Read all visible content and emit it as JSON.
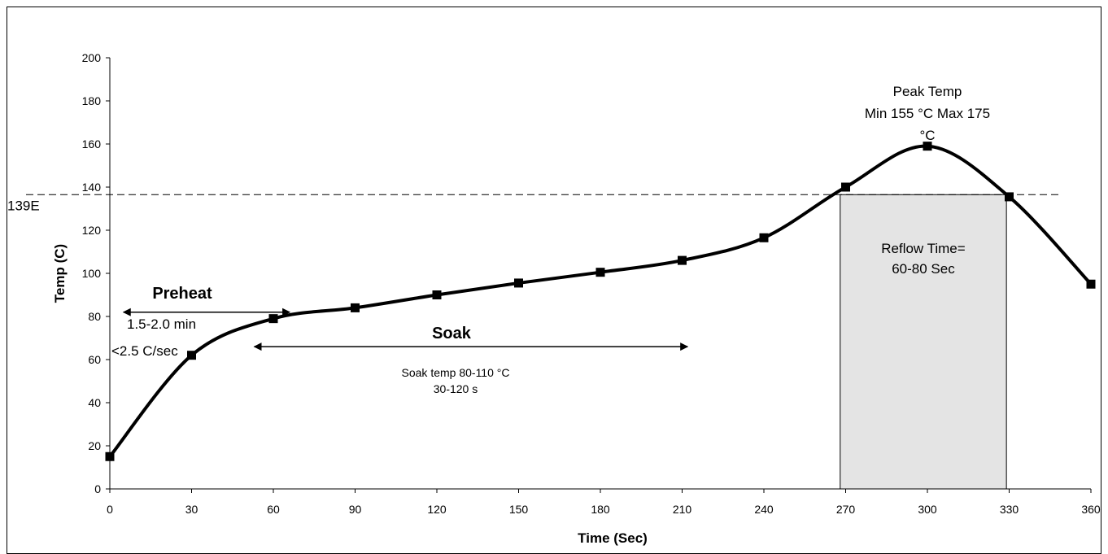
{
  "chart_data": {
    "type": "line",
    "title": "",
    "xlabel": "Time (Sec)",
    "ylabel": "Temp (C)",
    "xlim": [
      0,
      360
    ],
    "ylim": [
      0,
      200
    ],
    "x_ticks": [
      0,
      30,
      60,
      90,
      120,
      150,
      180,
      210,
      240,
      270,
      300,
      330,
      360
    ],
    "y_ticks": [
      0,
      20,
      40,
      60,
      80,
      100,
      120,
      140,
      160,
      180,
      200
    ],
    "grid": false,
    "series": [
      {
        "x": [
          0,
          30,
          60,
          90,
          120,
          150,
          180,
          210,
          240,
          270,
          300,
          330,
          360
        ],
        "y": [
          15,
          62,
          79,
          84,
          90,
          95.5,
          100.5,
          106,
          116.5,
          140,
          159,
          135.5,
          95
        ]
      }
    ],
    "reference_line": {
      "label": "139E",
      "y": 136.5
    },
    "reflow_region": {
      "x_start": 268,
      "x_end": 329,
      "y_top": 136.5,
      "lines": [
        "Reflow Time=",
        "60-80 Sec"
      ],
      "fill": "#e4e4e4"
    },
    "annotations": {
      "peak": [
        "Peak Temp",
        "Min 155 °C Max 175",
        "°C"
      ],
      "preheat": {
        "title": "Preheat",
        "lines": [
          "1.5-2.0 min",
          "<2.5 C/sec"
        ],
        "x_start": 5,
        "x_end": 66,
        "y": 82
      },
      "soak": {
        "title": "Soak",
        "lines": [
          "Soak temp 80-110 °C",
          "30-120 s"
        ],
        "x_start": 53,
        "x_end": 212,
        "y": 66
      }
    },
    "colors": {
      "line": "#000000",
      "marker": "#000000"
    }
  }
}
